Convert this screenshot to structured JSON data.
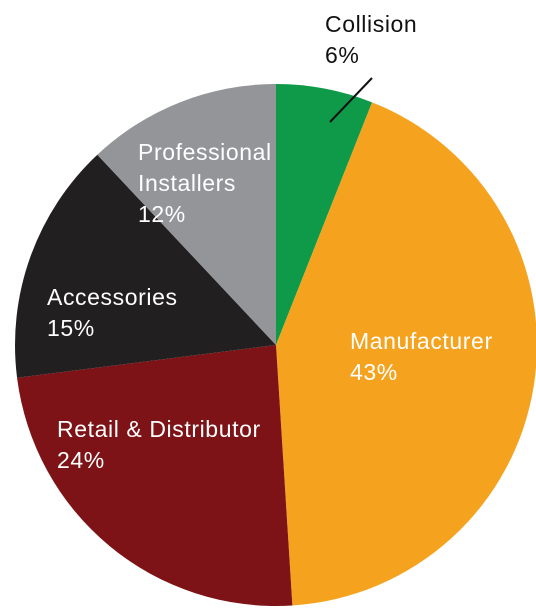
{
  "chart_data": {
    "type": "pie",
    "start_angle_deg": 0,
    "direction": "clockwise",
    "slices": [
      {
        "label": "Collision",
        "value": 6,
        "value_text": "6%",
        "color": "#0f9a4a",
        "text_color": "#111111"
      },
      {
        "label": "Manufacturer",
        "value": 43,
        "value_text": "43%",
        "color": "#f5a31e",
        "text_color": "#ffffff"
      },
      {
        "label": "Retail & Distributor",
        "value": 24,
        "value_text": "24%",
        "color": "#7d1316",
        "text_color": "#ffffff"
      },
      {
        "label": "Accessories",
        "value": 15,
        "value_text": "15%",
        "color": "#221f20",
        "text_color": "#ffffff"
      },
      {
        "label": "Professional Installers",
        "value": 12,
        "value_text": "12%",
        "color": "#939598",
        "text_color": "#ffffff"
      }
    ]
  }
}
